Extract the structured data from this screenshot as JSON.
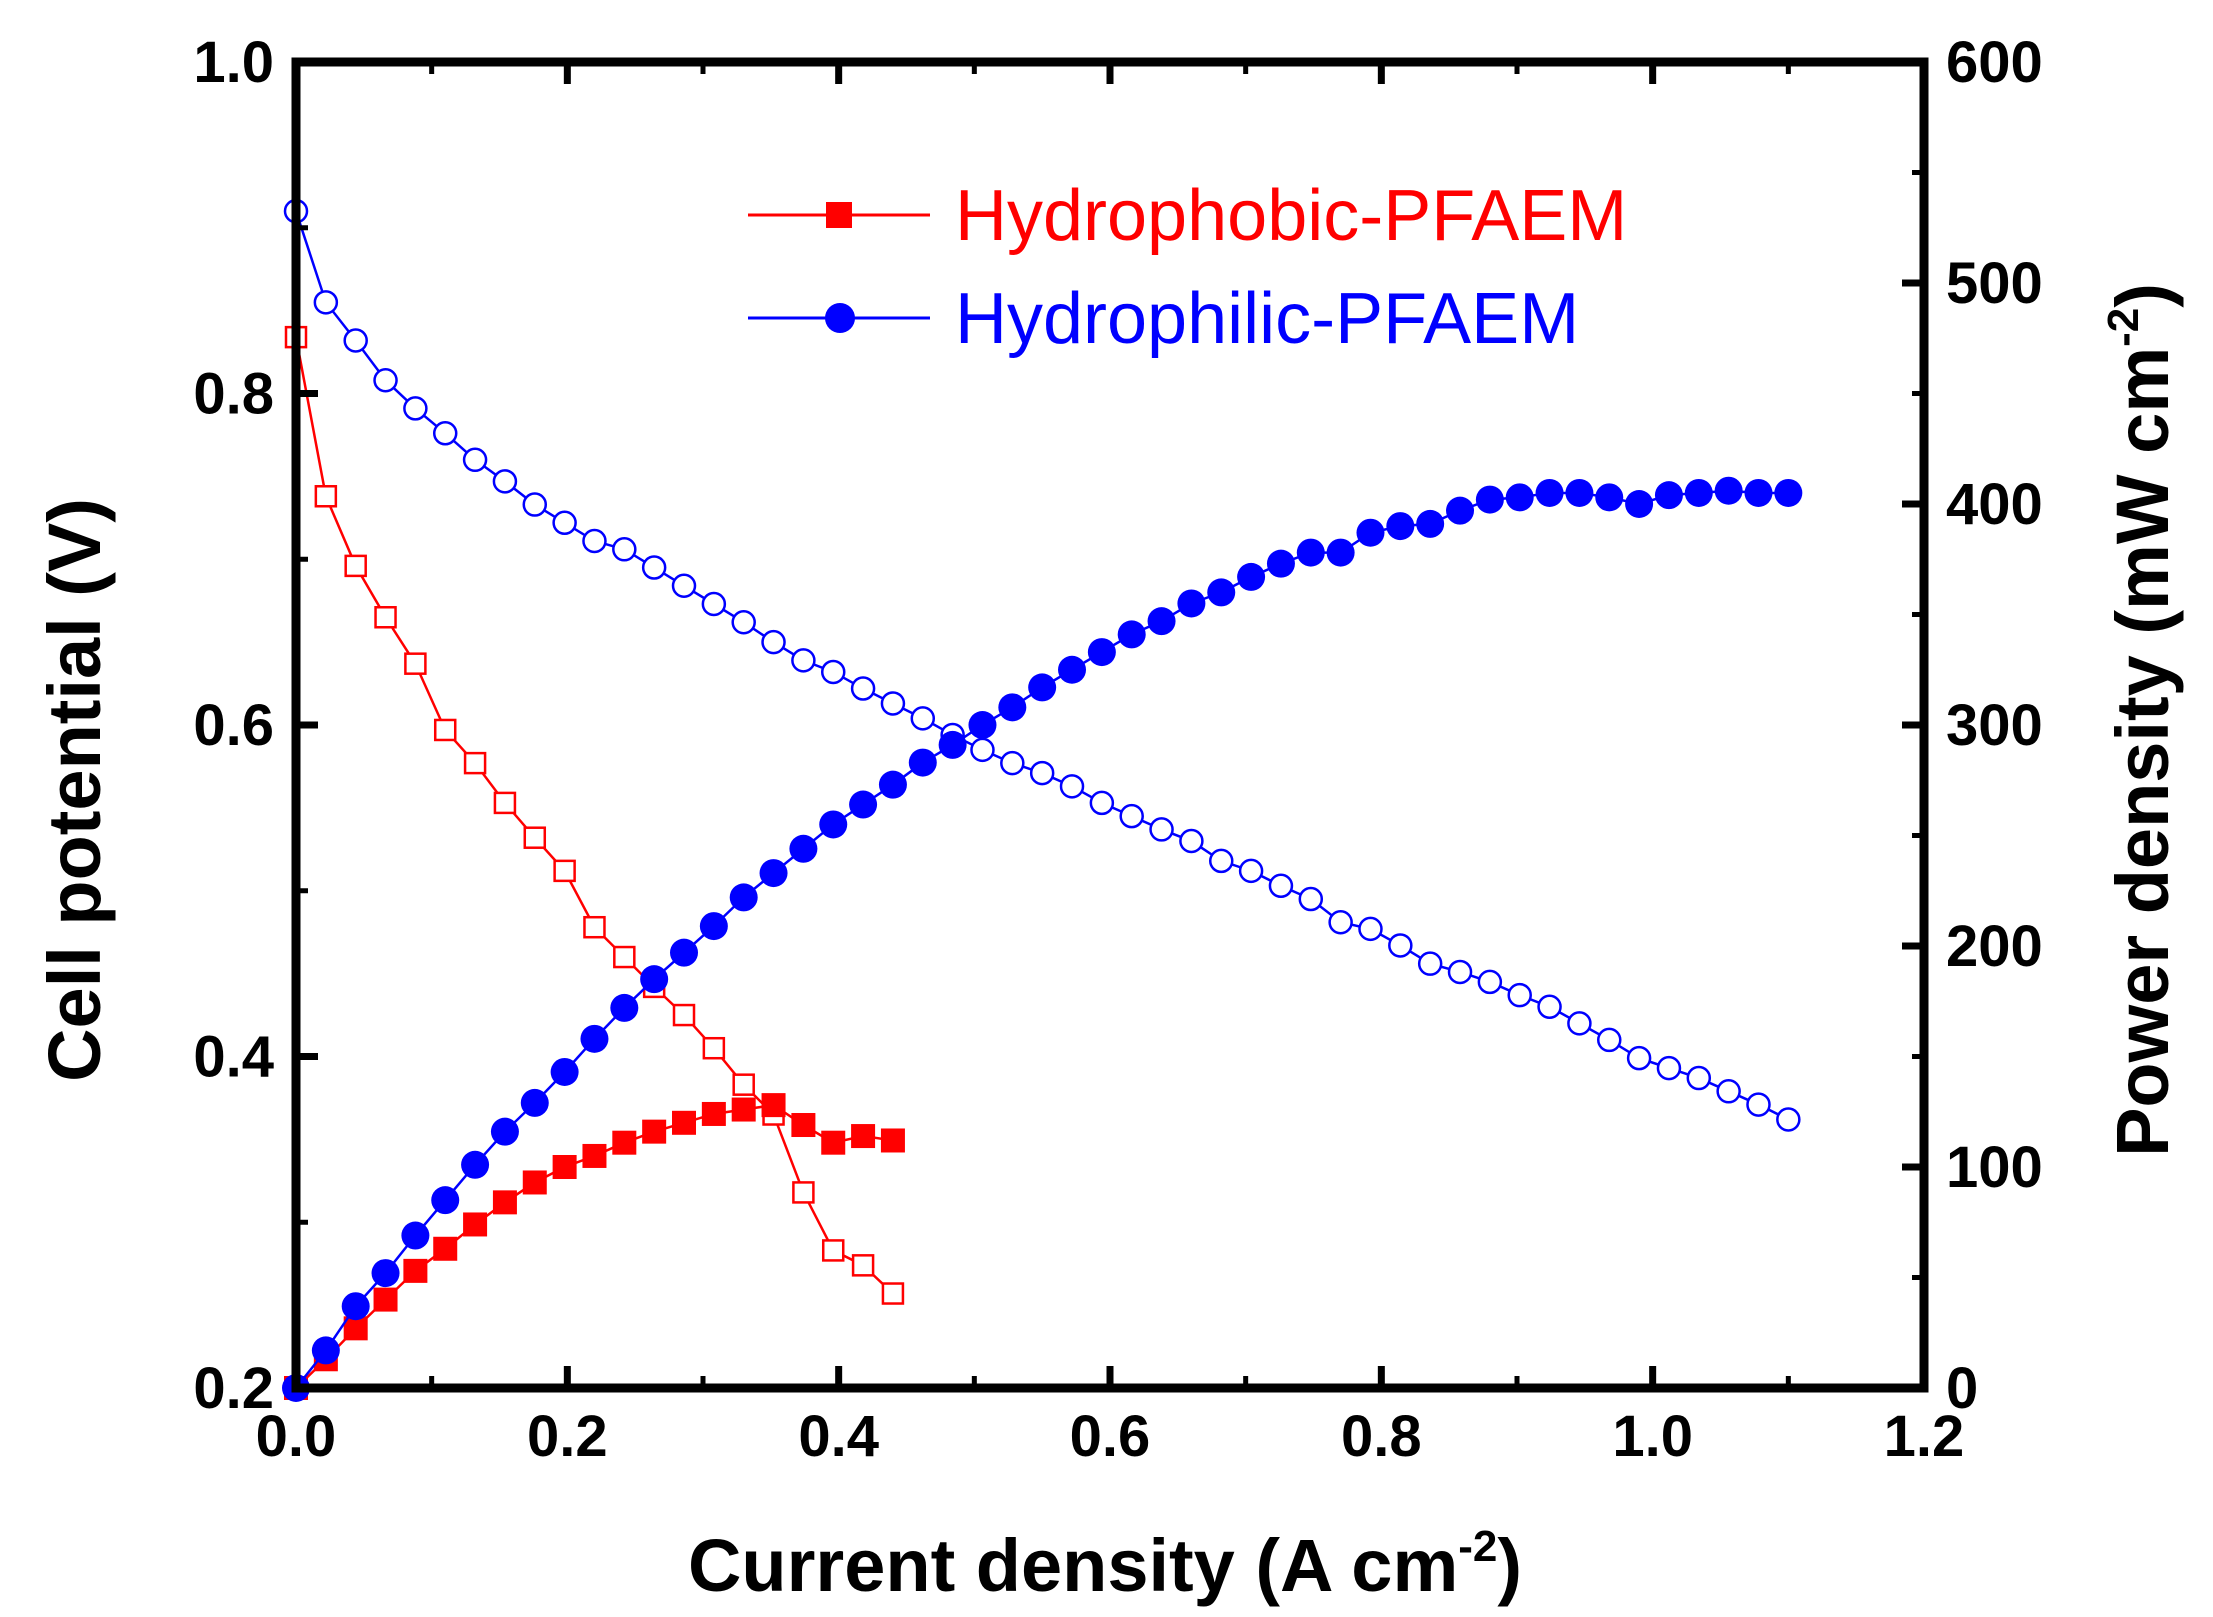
{
  "chart_data": {
    "type": "line",
    "xlabel": "Current density (A cm",
    "xlabel_sup": "-2",
    "xlabel_end": ")",
    "ylabel_left": "Cell potential (V)",
    "ylabel_right": "Power density (mW cm",
    "ylabel_right_sup": "-2",
    "ylabel_right_end": ")",
    "xlim": [
      0.0,
      1.2
    ],
    "ylim_left": [
      0.2,
      1.0
    ],
    "ylim_right": [
      0,
      600
    ],
    "x_ticks": [
      "0.0",
      "0.2",
      "0.4",
      "0.6",
      "0.8",
      "1.0",
      "1.2"
    ],
    "y_left_ticks": [
      "0.2",
      "0.4",
      "0.6",
      "0.8",
      "1.0"
    ],
    "y_right_ticks": [
      "0",
      "100",
      "200",
      "300",
      "400",
      "500",
      "600"
    ],
    "legend_position": "top-center",
    "series": [
      {
        "name": "Hydrophobic-PFAEM",
        "color": "#ff0000",
        "marker": "square",
        "polarization": {
          "x": [
            0.0,
            0.022,
            0.044,
            0.066,
            0.088,
            0.11,
            0.132,
            0.154,
            0.176,
            0.198,
            0.22,
            0.242,
            0.264,
            0.286,
            0.308,
            0.33,
            0.352,
            0.374,
            0.396,
            0.418,
            0.44
          ],
          "y": [
            0.834,
            0.738,
            0.696,
            0.665,
            0.637,
            0.597,
            0.577,
            0.553,
            0.532,
            0.512,
            0.478,
            0.46,
            0.442,
            0.425,
            0.405,
            0.383,
            0.365,
            0.318,
            0.283,
            0.274,
            0.257
          ]
        },
        "power": {
          "x": [
            0.0,
            0.022,
            0.044,
            0.066,
            0.088,
            0.11,
            0.132,
            0.154,
            0.176,
            0.198,
            0.22,
            0.242,
            0.264,
            0.286,
            0.308,
            0.33,
            0.352,
            0.374,
            0.396,
            0.418,
            0.44
          ],
          "y": [
            0,
            13,
            27,
            40,
            53,
            63,
            74,
            84,
            93,
            100,
            105,
            111,
            116,
            120,
            124,
            126,
            128,
            119,
            111,
            114,
            112
          ]
        }
      },
      {
        "name": "Hydrophilic-PFAEM",
        "color": "#0000ff",
        "marker": "circle",
        "polarization": {
          "x": [
            0.0,
            0.022,
            0.044,
            0.066,
            0.088,
            0.11,
            0.132,
            0.154,
            0.176,
            0.198,
            0.22,
            0.242,
            0.264,
            0.286,
            0.308,
            0.33,
            0.352,
            0.374,
            0.396,
            0.418,
            0.44,
            0.462,
            0.484,
            0.506,
            0.528,
            0.55,
            0.572,
            0.594,
            0.616,
            0.638,
            0.66,
            0.682,
            0.704,
            0.726,
            0.748,
            0.77,
            0.792,
            0.814,
            0.836,
            0.858,
            0.88,
            0.902,
            0.924,
            0.946,
            0.968,
            0.99,
            1.012,
            1.034,
            1.056,
            1.078,
            1.1
          ],
          "y": [
            0.91,
            0.855,
            0.832,
            0.808,
            0.791,
            0.776,
            0.76,
            0.747,
            0.733,
            0.722,
            0.711,
            0.706,
            0.695,
            0.684,
            0.673,
            0.662,
            0.65,
            0.639,
            0.632,
            0.622,
            0.613,
            0.604,
            0.594,
            0.585,
            0.577,
            0.571,
            0.563,
            0.553,
            0.545,
            0.537,
            0.53,
            0.518,
            0.512,
            0.503,
            0.495,
            0.481,
            0.477,
            0.467,
            0.456,
            0.451,
            0.445,
            0.437,
            0.43,
            0.42,
            0.41,
            0.399,
            0.393,
            0.387,
            0.379,
            0.371,
            0.362
          ]
        },
        "power": {
          "x": [
            0.0,
            0.022,
            0.044,
            0.066,
            0.088,
            0.11,
            0.132,
            0.154,
            0.176,
            0.198,
            0.22,
            0.242,
            0.264,
            0.286,
            0.308,
            0.33,
            0.352,
            0.374,
            0.396,
            0.418,
            0.44,
            0.462,
            0.484,
            0.506,
            0.528,
            0.55,
            0.572,
            0.594,
            0.616,
            0.638,
            0.66,
            0.682,
            0.704,
            0.726,
            0.748,
            0.77,
            0.792,
            0.814,
            0.836,
            0.858,
            0.88,
            0.902,
            0.924,
            0.946,
            0.968,
            0.99,
            1.012,
            1.034,
            1.056,
            1.078,
            1.1
          ],
          "y": [
            0,
            17,
            37,
            52,
            69,
            85,
            101,
            116,
            129,
            143,
            158,
            172,
            185,
            197,
            209,
            222,
            233,
            244,
            255,
            264,
            273,
            283,
            291,
            300,
            308,
            317,
            325,
            333,
            341,
            347,
            355,
            360,
            367,
            373,
            378,
            378,
            387,
            390,
            391,
            397,
            402,
            403,
            405,
            405,
            403,
            400,
            404,
            405,
            406,
            405,
            405
          ]
        }
      }
    ]
  }
}
